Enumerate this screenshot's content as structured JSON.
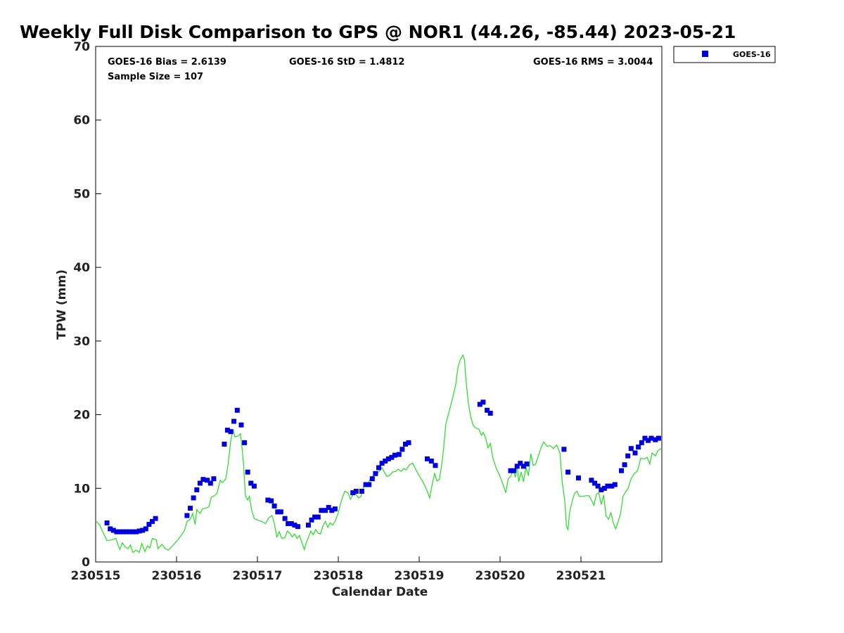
{
  "chart_data": {
    "type": "scatter",
    "title": "Weekly Full Disk Comparison to GPS @ NOR1 (44.26, -85.44) 2023-05-21",
    "xlabel": "Calendar Date",
    "ylabel": "TPW (mm)",
    "xlim": [
      0,
      7
    ],
    "ylim": [
      0,
      70
    ],
    "x_ticks": [
      0,
      1,
      2,
      3,
      4,
      5,
      6
    ],
    "x_tick_labels": [
      "230515",
      "230516",
      "230517",
      "230518",
      "230519",
      "230520",
      "230521"
    ],
    "y_ticks": [
      0,
      10,
      20,
      30,
      40,
      50,
      60,
      70
    ],
    "y_tick_labels": [
      "0",
      "10",
      "20",
      "30",
      "40",
      "50",
      "60",
      "70"
    ],
    "grid": false,
    "legend_position": "outside-top-right",
    "colors": {
      "goes": "#0000dd",
      "gps": "#22dd22"
    },
    "stats": {
      "bias": "GOES-16 Bias = 2.6139",
      "std": "GOES-16 StD = 1.4812",
      "rms": "GOES-16 RMS = 3.0044",
      "sample": "Sample Size = 107"
    },
    "series": [
      {
        "name": "GOES-16",
        "style": "square-marker",
        "points": [
          [
            0.14,
            5.3
          ],
          [
            0.18,
            4.5
          ],
          [
            0.22,
            4.3
          ],
          [
            0.26,
            4.1
          ],
          [
            0.3,
            4.1
          ],
          [
            0.34,
            4.1
          ],
          [
            0.38,
            4.1
          ],
          [
            0.42,
            4.1
          ],
          [
            0.46,
            4.1
          ],
          [
            0.5,
            4.1
          ],
          [
            0.54,
            4.2
          ],
          [
            0.58,
            4.3
          ],
          [
            0.62,
            4.5
          ],
          [
            0.66,
            5.1
          ],
          [
            0.7,
            5.5
          ],
          [
            0.74,
            5.9
          ],
          [
            1.13,
            6.3
          ],
          [
            1.17,
            7.3
          ],
          [
            1.21,
            8.7
          ],
          [
            1.25,
            9.8
          ],
          [
            1.29,
            10.7
          ],
          [
            1.33,
            11.2
          ],
          [
            1.38,
            11.1
          ],
          [
            1.42,
            10.7
          ],
          [
            1.46,
            11.3
          ],
          [
            1.59,
            16.0
          ],
          [
            1.63,
            17.9
          ],
          [
            1.67,
            17.7
          ],
          [
            1.71,
            19.1
          ],
          [
            1.75,
            20.6
          ],
          [
            1.8,
            18.6
          ],
          [
            1.84,
            16.2
          ],
          [
            1.88,
            12.2
          ],
          [
            1.92,
            10.7
          ],
          [
            1.96,
            10.3
          ],
          [
            2.13,
            8.4
          ],
          [
            2.17,
            8.3
          ],
          [
            2.21,
            7.6
          ],
          [
            2.25,
            6.8
          ],
          [
            2.29,
            6.8
          ],
          [
            2.34,
            5.9
          ],
          [
            2.38,
            5.2
          ],
          [
            2.42,
            5.2
          ],
          [
            2.46,
            5.0
          ],
          [
            2.5,
            4.8
          ],
          [
            2.63,
            5.0
          ],
          [
            2.67,
            5.7
          ],
          [
            2.71,
            6.1
          ],
          [
            2.75,
            6.1
          ],
          [
            2.79,
            7.0
          ],
          [
            2.84,
            7.0
          ],
          [
            2.88,
            7.4
          ],
          [
            2.92,
            7.0
          ],
          [
            2.96,
            7.2
          ],
          [
            3.18,
            9.4
          ],
          [
            3.22,
            9.6
          ],
          [
            3.29,
            9.6
          ],
          [
            3.34,
            10.5
          ],
          [
            3.38,
            10.5
          ],
          [
            3.42,
            11.3
          ],
          [
            3.46,
            12.0
          ],
          [
            3.5,
            12.8
          ],
          [
            3.54,
            13.4
          ],
          [
            3.58,
            13.7
          ],
          [
            3.62,
            14.0
          ],
          [
            3.66,
            14.2
          ],
          [
            3.7,
            14.5
          ],
          [
            3.75,
            14.6
          ],
          [
            3.79,
            15.3
          ],
          [
            3.83,
            16.0
          ],
          [
            3.87,
            16.2
          ],
          [
            4.1,
            14.0
          ],
          [
            4.15,
            13.7
          ],
          [
            4.2,
            13.1
          ],
          [
            4.75,
            21.4
          ],
          [
            4.79,
            21.7
          ],
          [
            4.84,
            20.6
          ],
          [
            4.88,
            20.2
          ],
          [
            5.13,
            12.4
          ],
          [
            5.17,
            12.4
          ],
          [
            5.21,
            13.0
          ],
          [
            5.25,
            13.4
          ],
          [
            5.29,
            13.0
          ],
          [
            5.33,
            13.3
          ],
          [
            5.79,
            15.3
          ],
          [
            5.84,
            12.2
          ],
          [
            5.97,
            11.4
          ],
          [
            6.13,
            11.1
          ],
          [
            6.17,
            10.7
          ],
          [
            6.21,
            10.3
          ],
          [
            6.25,
            9.8
          ],
          [
            6.29,
            10.0
          ],
          [
            6.33,
            10.3
          ],
          [
            6.38,
            10.3
          ],
          [
            6.42,
            10.5
          ],
          [
            6.5,
            12.4
          ],
          [
            6.54,
            13.2
          ],
          [
            6.58,
            14.4
          ],
          [
            6.62,
            15.4
          ],
          [
            6.67,
            14.8
          ],
          [
            6.71,
            15.6
          ],
          [
            6.75,
            16.2
          ],
          [
            6.79,
            16.8
          ],
          [
            6.83,
            16.5
          ],
          [
            6.87,
            16.8
          ],
          [
            6.92,
            16.6
          ],
          [
            6.96,
            16.8
          ]
        ]
      },
      {
        "style": "line",
        "points": [
          [
            0,
            5.6
          ],
          [
            0.05,
            5.0
          ],
          [
            0.1,
            3.8
          ],
          [
            0.14,
            2.9
          ],
          [
            0.2,
            3.0
          ],
          [
            0.25,
            3.2
          ],
          [
            0.28,
            2.2
          ],
          [
            0.3,
            1.7
          ],
          [
            0.33,
            2.6
          ],
          [
            0.36,
            2.1
          ],
          [
            0.4,
            1.8
          ],
          [
            0.43,
            2.3
          ],
          [
            0.46,
            1.3
          ],
          [
            0.5,
            1.6
          ],
          [
            0.54,
            1.3
          ],
          [
            0.57,
            2.5
          ],
          [
            0.61,
            1.4
          ],
          [
            0.64,
            2.2
          ],
          [
            0.67,
            1.9
          ],
          [
            0.7,
            3.2
          ],
          [
            0.75,
            3.0
          ],
          [
            0.77,
            1.8
          ],
          [
            0.82,
            2.4
          ],
          [
            0.86,
            1.8
          ],
          [
            0.9,
            1.6
          ],
          [
            0.95,
            2.2
          ],
          [
            1.0,
            2.8
          ],
          [
            1.05,
            3.5
          ],
          [
            1.1,
            4.3
          ],
          [
            1.13,
            5.5
          ],
          [
            1.17,
            5.8
          ],
          [
            1.2,
            6.6
          ],
          [
            1.23,
            5.1
          ],
          [
            1.25,
            7.1
          ],
          [
            1.29,
            6.6
          ],
          [
            1.32,
            7.2
          ],
          [
            1.36,
            7.3
          ],
          [
            1.4,
            7.5
          ],
          [
            1.43,
            8.8
          ],
          [
            1.47,
            9.0
          ],
          [
            1.5,
            9.3
          ],
          [
            1.54,
            11.1
          ],
          [
            1.57,
            10.8
          ],
          [
            1.61,
            11.3
          ],
          [
            1.64,
            13.5
          ],
          [
            1.67,
            16.5
          ],
          [
            1.7,
            18.0
          ],
          [
            1.72,
            17.0
          ],
          [
            1.76,
            17.1
          ],
          [
            1.79,
            17.4
          ],
          [
            1.81,
            15.5
          ],
          [
            1.83,
            13.0
          ],
          [
            1.85,
            9.0
          ],
          [
            1.88,
            8.4
          ],
          [
            1.9,
            8.9
          ],
          [
            1.93,
            7.0
          ],
          [
            1.96,
            5.9
          ],
          [
            2.0,
            5.7
          ],
          [
            2.05,
            5.5
          ],
          [
            2.1,
            5.2
          ],
          [
            2.14,
            6.0
          ],
          [
            2.18,
            6.3
          ],
          [
            2.21,
            5.2
          ],
          [
            2.24,
            3.4
          ],
          [
            2.27,
            4.1
          ],
          [
            2.3,
            3.2
          ],
          [
            2.34,
            3.3
          ],
          [
            2.37,
            4.2
          ],
          [
            2.4,
            3.9
          ],
          [
            2.43,
            3.4
          ],
          [
            2.46,
            3.8
          ],
          [
            2.49,
            3.2
          ],
          [
            2.52,
            3.6
          ],
          [
            2.56,
            2.3
          ],
          [
            2.58,
            1.7
          ],
          [
            2.6,
            2.5
          ],
          [
            2.63,
            3.3
          ],
          [
            2.66,
            4.2
          ],
          [
            2.69,
            3.7
          ],
          [
            2.72,
            4.4
          ],
          [
            2.75,
            3.9
          ],
          [
            2.78,
            3.8
          ],
          [
            2.81,
            4.9
          ],
          [
            2.84,
            5.5
          ],
          [
            2.87,
            4.7
          ],
          [
            2.9,
            5.3
          ],
          [
            2.93,
            5.0
          ],
          [
            2.96,
            5.5
          ],
          [
            3.0,
            6.7
          ],
          [
            3.04,
            8.4
          ],
          [
            3.08,
            9.6
          ],
          [
            3.12,
            9.4
          ],
          [
            3.15,
            8.5
          ],
          [
            3.18,
            9.1
          ],
          [
            3.21,
            9.3
          ],
          [
            3.25,
            8.7
          ],
          [
            3.28,
            8.9
          ],
          [
            3.32,
            10.6
          ],
          [
            3.35,
            10.3
          ],
          [
            3.39,
            11.2
          ],
          [
            3.42,
            11.6
          ],
          [
            3.45,
            11.8
          ],
          [
            3.5,
            12.2
          ],
          [
            3.54,
            12.8
          ],
          [
            3.57,
            12.2
          ],
          [
            3.6,
            11.6
          ],
          [
            3.64,
            11.8
          ],
          [
            3.67,
            12.2
          ],
          [
            3.71,
            12.3
          ],
          [
            3.74,
            12.6
          ],
          [
            3.78,
            12.3
          ],
          [
            3.81,
            12.7
          ],
          [
            3.84,
            12.5
          ],
          [
            3.88,
            13.2
          ],
          [
            3.92,
            13.4
          ],
          [
            3.96,
            12.5
          ],
          [
            4.0,
            11.7
          ],
          [
            4.05,
            10.8
          ],
          [
            4.1,
            9.6
          ],
          [
            4.13,
            8.7
          ],
          [
            4.16,
            10.5
          ],
          [
            4.19,
            12.0
          ],
          [
            4.22,
            11.0
          ],
          [
            4.25,
            11.2
          ],
          [
            4.29,
            14.2
          ],
          [
            4.33,
            18.8
          ],
          [
            4.37,
            20.4
          ],
          [
            4.41,
            22.1
          ],
          [
            4.45,
            24.0
          ],
          [
            4.48,
            26.5
          ],
          [
            4.51,
            27.5
          ],
          [
            4.54,
            28.1
          ],
          [
            4.56,
            27.5
          ],
          [
            4.58,
            24.5
          ],
          [
            4.61,
            21.4
          ],
          [
            4.64,
            19.6
          ],
          [
            4.67,
            18.5
          ],
          [
            4.7,
            18.2
          ],
          [
            4.74,
            18.0
          ],
          [
            4.77,
            17.2
          ],
          [
            4.79,
            17.6
          ],
          [
            4.82,
            16.9
          ],
          [
            4.85,
            15.5
          ],
          [
            4.88,
            16.1
          ],
          [
            4.91,
            14.2
          ],
          [
            4.95,
            12.8
          ],
          [
            5.0,
            11.6
          ],
          [
            5.04,
            10.4
          ],
          [
            5.07,
            9.4
          ],
          [
            5.1,
            11.3
          ],
          [
            5.13,
            11.6
          ],
          [
            5.16,
            12.5
          ],
          [
            5.19,
            11.5
          ],
          [
            5.21,
            13.1
          ],
          [
            5.23,
            10.9
          ],
          [
            5.26,
            12.2
          ],
          [
            5.29,
            10.9
          ],
          [
            5.32,
            12.9
          ],
          [
            5.35,
            11.7
          ],
          [
            5.38,
            14.7
          ],
          [
            5.41,
            13.1
          ],
          [
            5.44,
            13.3
          ],
          [
            5.47,
            14.3
          ],
          [
            5.51,
            15.6
          ],
          [
            5.54,
            16.3
          ],
          [
            5.58,
            15.7
          ],
          [
            5.62,
            15.8
          ],
          [
            5.66,
            15.4
          ],
          [
            5.7,
            15.9
          ],
          [
            5.74,
            14.8
          ],
          [
            5.77,
            10.7
          ],
          [
            5.8,
            8.3
          ],
          [
            5.82,
            4.9
          ],
          [
            5.84,
            4.4
          ],
          [
            5.86,
            6.8
          ],
          [
            5.89,
            8.2
          ],
          [
            5.92,
            9.3
          ],
          [
            5.95,
            9.6
          ],
          [
            5.98,
            8.9
          ],
          [
            6.02,
            8.9
          ],
          [
            6.06,
            9.0
          ],
          [
            6.1,
            9.0
          ],
          [
            6.13,
            8.4
          ],
          [
            6.16,
            7.7
          ],
          [
            6.19,
            9.2
          ],
          [
            6.22,
            9.4
          ],
          [
            6.25,
            7.8
          ],
          [
            6.28,
            9.1
          ],
          [
            6.31,
            6.3
          ],
          [
            6.34,
            5.8
          ],
          [
            6.37,
            6.7
          ],
          [
            6.4,
            5.3
          ],
          [
            6.43,
            4.5
          ],
          [
            6.46,
            5.5
          ],
          [
            6.49,
            6.6
          ],
          [
            6.52,
            8.9
          ],
          [
            6.55,
            9.5
          ],
          [
            6.58,
            9.9
          ],
          [
            6.62,
            11.3
          ],
          [
            6.66,
            12.0
          ],
          [
            6.7,
            12.4
          ],
          [
            6.74,
            14.1
          ],
          [
            6.78,
            14.0
          ],
          [
            6.82,
            14.2
          ],
          [
            6.85,
            13.3
          ],
          [
            6.88,
            14.8
          ],
          [
            6.92,
            14.4
          ],
          [
            6.95,
            15.1
          ],
          [
            6.99,
            15.4
          ]
        ]
      }
    ]
  }
}
